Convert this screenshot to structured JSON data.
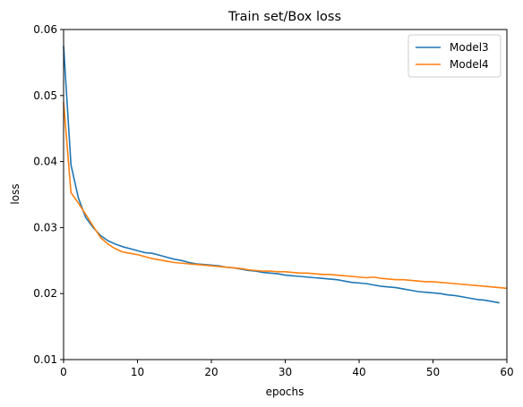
{
  "chart_data": {
    "type": "line",
    "title": "Train set/Box loss",
    "xlabel": "epochs",
    "ylabel": "loss",
    "xlim": [
      0,
      60
    ],
    "ylim": [
      0.01,
      0.06
    ],
    "xticks": [
      0,
      10,
      20,
      30,
      40,
      50,
      60
    ],
    "yticks": [
      0.01,
      0.02,
      0.03,
      0.04,
      0.05,
      0.06
    ],
    "xtick_labels": [
      "0",
      "10",
      "20",
      "30",
      "40",
      "50",
      "60"
    ],
    "ytick_labels": [
      "0.01",
      "0.02",
      "0.03",
      "0.04",
      "0.05",
      "0.06"
    ],
    "grid": false,
    "legend_position": "top-right",
    "series": [
      {
        "name": "Model3",
        "color": "#1f77b4",
        "x": [
          0,
          1,
          2,
          3,
          4,
          5,
          6,
          7,
          8,
          9,
          10,
          11,
          12,
          13,
          14,
          15,
          16,
          17,
          18,
          19,
          20,
          21,
          22,
          23,
          24,
          25,
          26,
          27,
          28,
          29,
          30,
          31,
          32,
          33,
          34,
          35,
          36,
          37,
          38,
          39,
          40,
          41,
          42,
          43,
          44,
          45,
          46,
          47,
          48,
          49,
          50,
          51,
          52,
          53,
          54,
          55,
          56,
          57,
          58,
          59
        ],
        "y": [
          0.0575,
          0.0395,
          0.0345,
          0.0315,
          0.03,
          0.0288,
          0.028,
          0.0275,
          0.0271,
          0.0268,
          0.0265,
          0.0262,
          0.0261,
          0.0258,
          0.0255,
          0.0252,
          0.025,
          0.0247,
          0.0245,
          0.0244,
          0.0243,
          0.0242,
          0.024,
          0.0239,
          0.0237,
          0.0235,
          0.0234,
          0.0232,
          0.0231,
          0.023,
          0.0228,
          0.0227,
          0.0226,
          0.0225,
          0.0224,
          0.0223,
          0.0222,
          0.0221,
          0.0219,
          0.0217,
          0.0216,
          0.0215,
          0.0213,
          0.0211,
          0.021,
          0.0209,
          0.0207,
          0.0205,
          0.0203,
          0.0202,
          0.0201,
          0.02,
          0.0198,
          0.0197,
          0.0195,
          0.0193,
          0.0191,
          0.019,
          0.0188,
          0.0186
        ]
      },
      {
        "name": "Model4",
        "color": "#ff7f0e",
        "x": [
          0,
          1,
          2,
          3,
          4,
          5,
          6,
          7,
          8,
          9,
          10,
          11,
          12,
          13,
          14,
          15,
          16,
          17,
          18,
          19,
          20,
          21,
          22,
          23,
          24,
          25,
          26,
          27,
          28,
          29,
          30,
          31,
          32,
          33,
          34,
          35,
          36,
          37,
          38,
          39,
          40,
          41,
          42,
          43,
          44,
          45,
          46,
          47,
          48,
          49,
          50,
          51,
          52,
          53,
          54,
          55,
          56,
          57,
          58,
          59,
          60
        ],
        "y": [
          0.049,
          0.0353,
          0.0337,
          0.032,
          0.0302,
          0.0285,
          0.0275,
          0.0268,
          0.0263,
          0.0261,
          0.0259,
          0.0256,
          0.0253,
          0.0251,
          0.0249,
          0.0247,
          0.0246,
          0.0245,
          0.0244,
          0.0243,
          0.0242,
          0.0241,
          0.024,
          0.0239,
          0.0238,
          0.0236,
          0.0235,
          0.0234,
          0.0234,
          0.0233,
          0.0233,
          0.0232,
          0.0231,
          0.0231,
          0.023,
          0.0229,
          0.0229,
          0.0228,
          0.0227,
          0.0226,
          0.0225,
          0.0224,
          0.0225,
          0.0223,
          0.0222,
          0.0221,
          0.0221,
          0.022,
          0.0219,
          0.0218,
          0.0218,
          0.0217,
          0.0216,
          0.0215,
          0.0214,
          0.0213,
          0.0212,
          0.0211,
          0.021,
          0.0209,
          0.0208
        ]
      }
    ]
  }
}
